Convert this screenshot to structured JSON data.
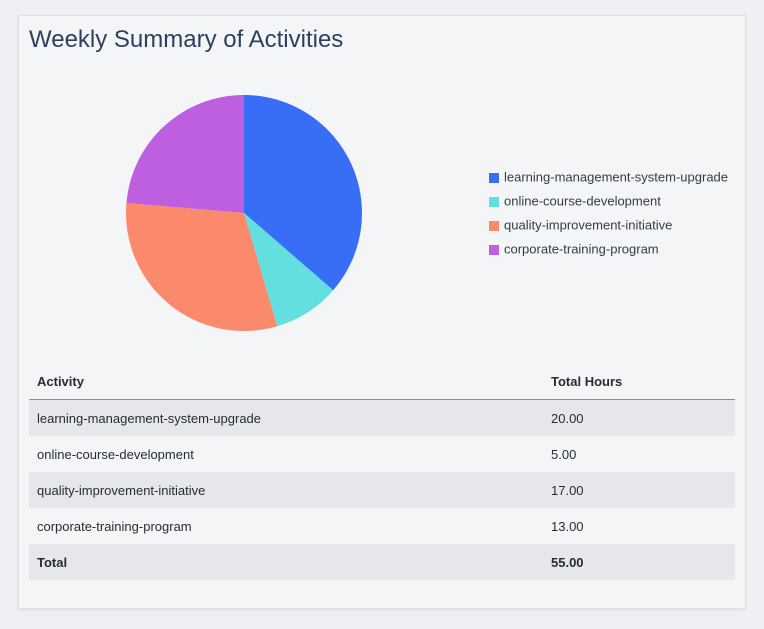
{
  "chart_data": {
    "type": "pie",
    "title": "Weekly Summary of Activities",
    "categories": [
      "learning-management-system-upgrade",
      "online-course-development",
      "quality-improvement-initiative",
      "corporate-training-program"
    ],
    "values": [
      20,
      5,
      17,
      13
    ],
    "colors": [
      "#376ef5",
      "#63dfe0",
      "#fa8a6b",
      "#be5fe0"
    ],
    "legend": "right"
  },
  "table": {
    "header": [
      "Activity",
      "Total Hours"
    ],
    "rows": [
      [
        "learning-management-system-upgrade",
        "20.00"
      ],
      [
        "online-course-development",
        "5.00"
      ],
      [
        "quality-improvement-initiative",
        "17.00"
      ],
      [
        "corporate-training-program",
        "13.00"
      ]
    ],
    "footer": [
      "Total",
      "55.00"
    ]
  }
}
